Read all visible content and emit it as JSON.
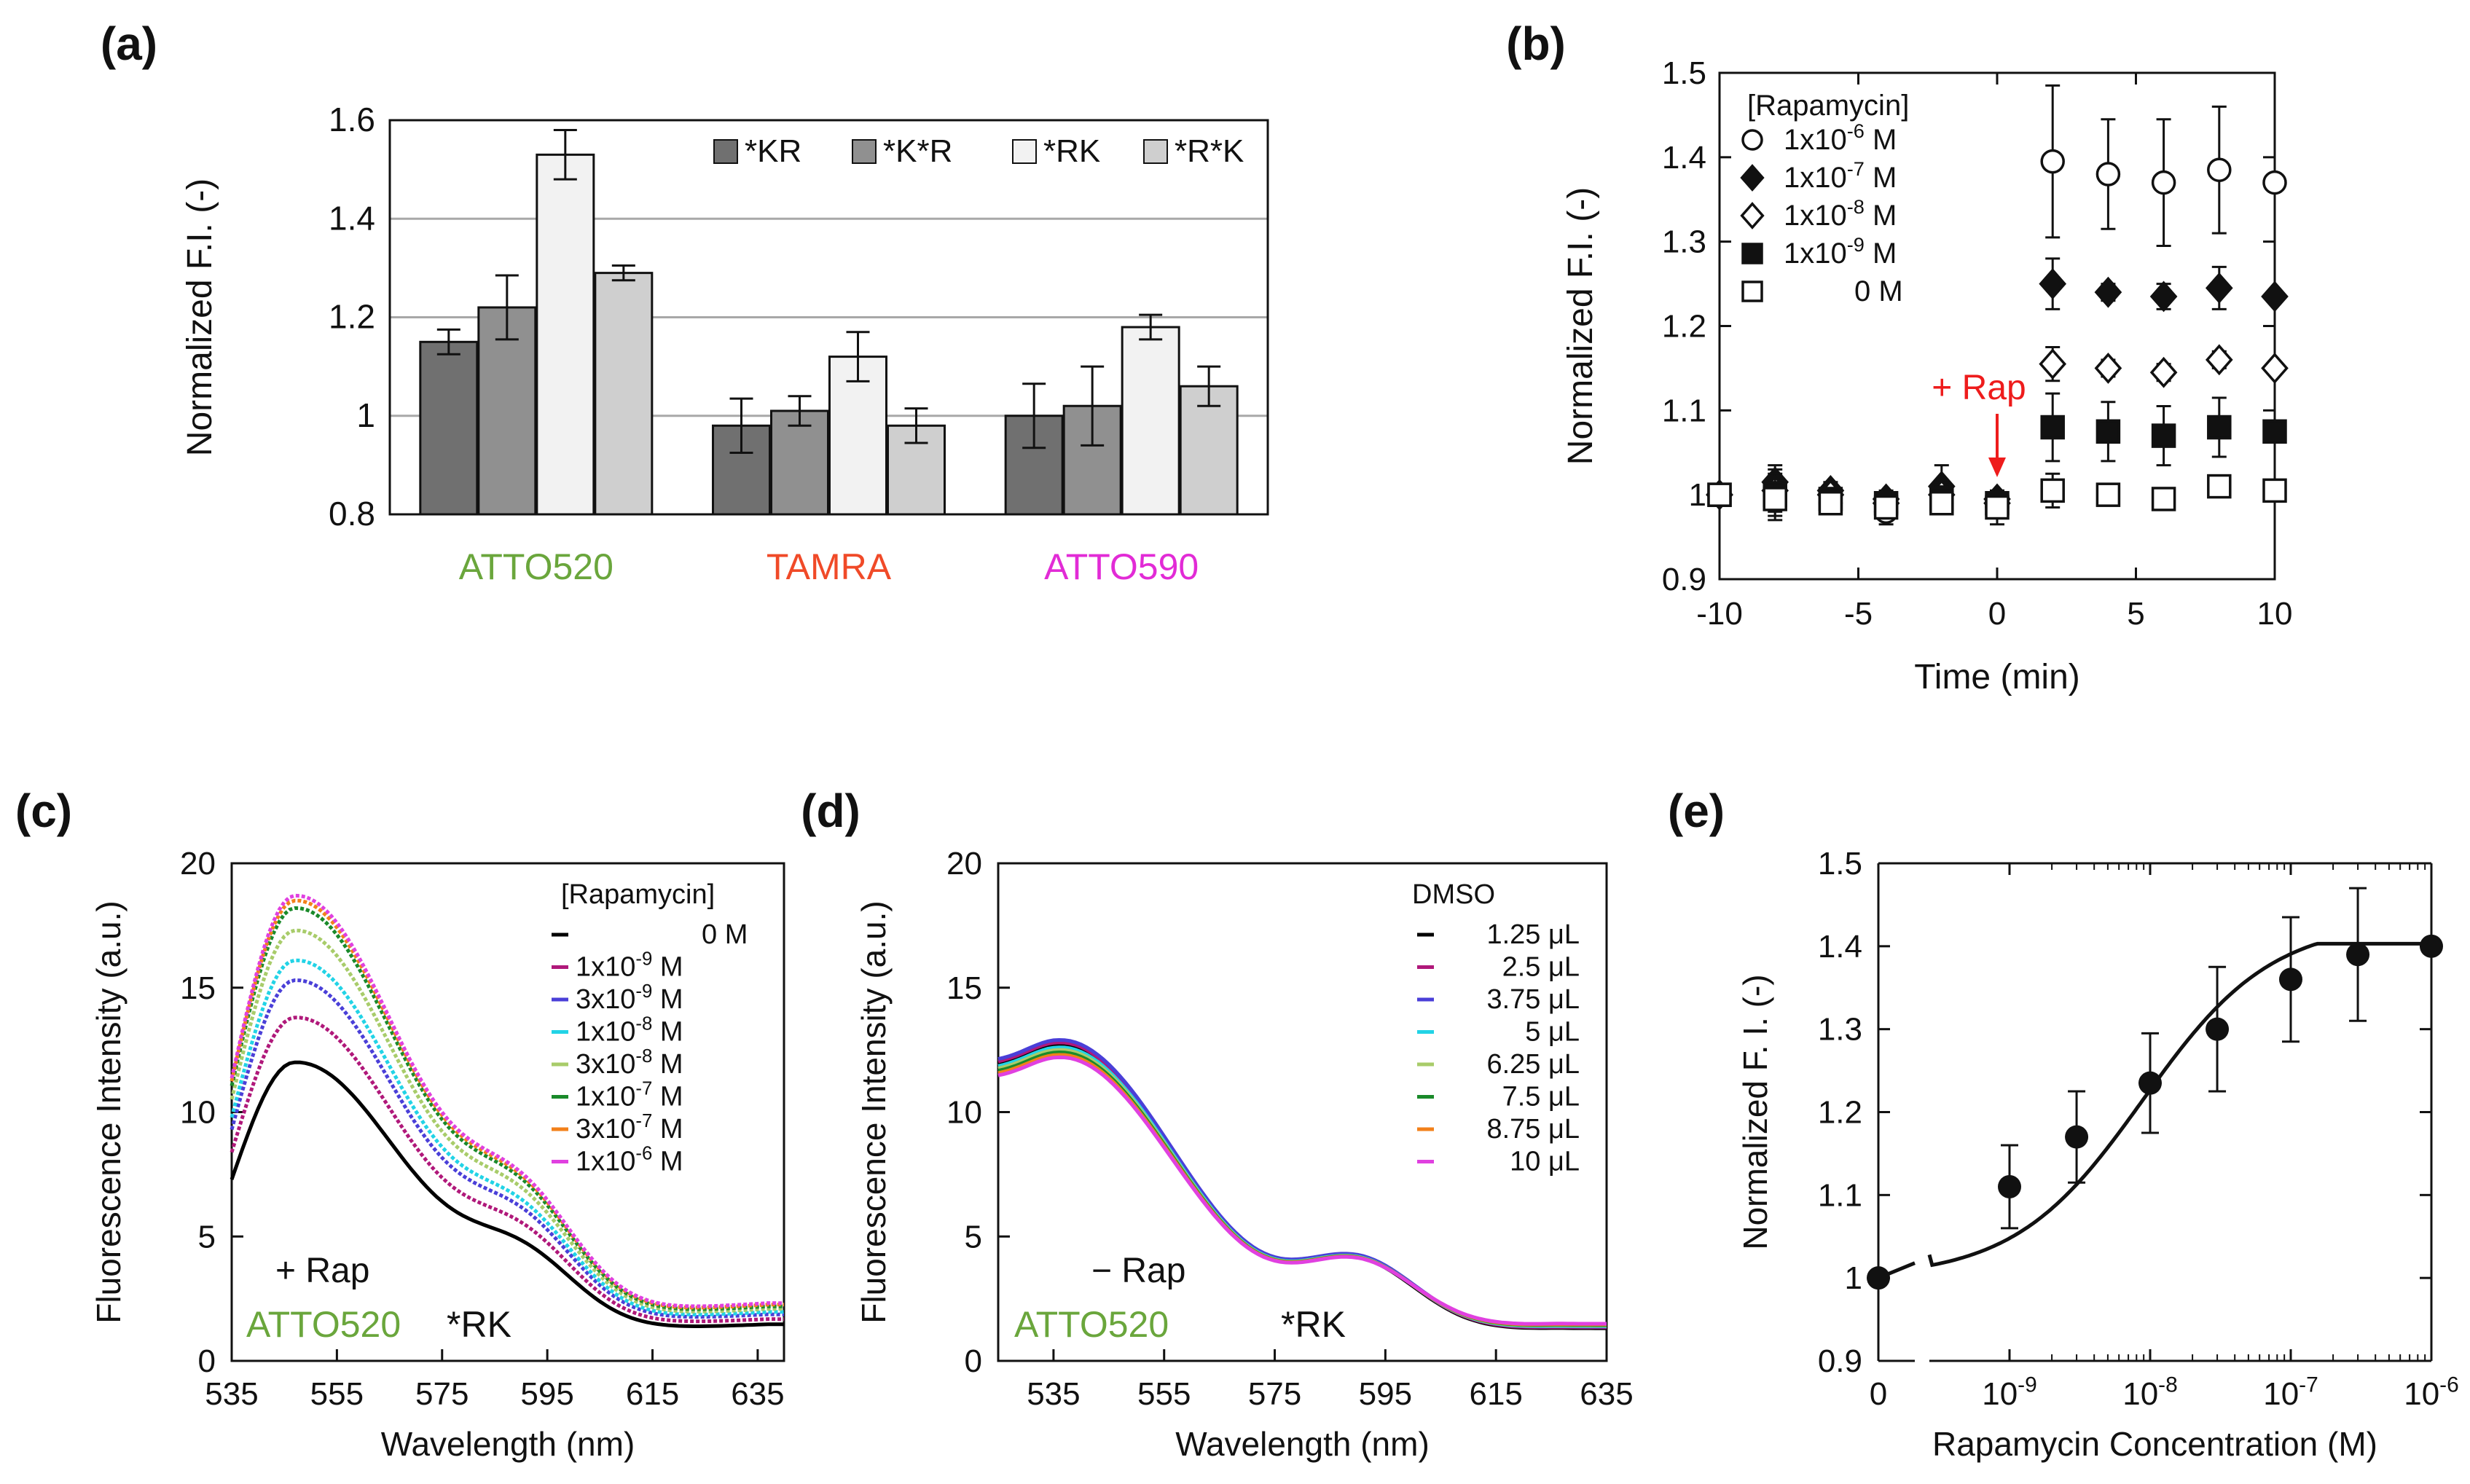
{
  "chart_data": [
    {
      "id": "a",
      "panel_label": "(a)",
      "type": "bar",
      "ylabel": "Normalized F.I. (-)",
      "ylim": [
        0.8,
        1.6
      ],
      "yticks": [
        "0.8",
        "1",
        "1.2",
        "1.4",
        "1.6"
      ],
      "ytick_values": [
        0.8,
        1.0,
        1.2,
        1.4,
        1.6
      ],
      "grid": "horizontal",
      "legend_position": "top-right",
      "categories": [
        {
          "label": "ATTO520",
          "color": "#6aa63c"
        },
        {
          "label": "TAMRA",
          "color": "#f04a28"
        },
        {
          "label": "ATTO590",
          "color": "#e22bd6"
        }
      ],
      "series": [
        {
          "name": "*KR",
          "color": "#707070",
          "values": [
            1.15,
            0.98,
            1.0
          ],
          "errors": [
            0.025,
            0.055,
            0.065
          ]
        },
        {
          "name": "*K*R",
          "color": "#909090",
          "values": [
            1.22,
            1.01,
            1.02
          ],
          "errors": [
            0.065,
            0.03,
            0.08
          ]
        },
        {
          "name": "*RK",
          "color": "#f2f2f2",
          "values": [
            1.53,
            1.12,
            1.18
          ],
          "errors": [
            0.05,
            0.05,
            0.025
          ]
        },
        {
          "name": "*R*K",
          "color": "#cfcfcf",
          "values": [
            1.29,
            0.98,
            1.06
          ],
          "errors": [
            0.015,
            0.035,
            0.04
          ]
        }
      ]
    },
    {
      "id": "b",
      "panel_label": "(b)",
      "type": "scatter",
      "xlabel": "Time (min)",
      "ylabel": "Normalized F.I. (-)",
      "xlim": [
        -10,
        10
      ],
      "ylim": [
        0.9,
        1.5
      ],
      "xticks": [
        "-10",
        "-5",
        "0",
        "5",
        "10"
      ],
      "xtick_values": [
        -10,
        -5,
        0,
        5,
        10
      ],
      "yticks": [
        "0.9",
        "1",
        "1.1",
        "1.2",
        "1.3",
        "1.4",
        "1.5"
      ],
      "ytick_values": [
        0.9,
        1.0,
        1.1,
        1.2,
        1.3,
        1.4,
        1.5
      ],
      "legend_title": "[Rapamycin]",
      "annotation": "+ Rap",
      "annotation_color": "#ee1c1c",
      "annotation_x": 0,
      "x": [
        -10,
        -8,
        -6,
        -4,
        -2,
        0,
        2,
        4,
        6,
        8,
        10
      ],
      "series": [
        {
          "name": "1x10",
          "exp": "-6",
          "unit": " M",
          "marker": "open-circle",
          "values": [
            1.0,
            1.0,
            0.99,
            0.98,
            0.99,
            0.985,
            1.395,
            1.38,
            1.37,
            1.385,
            1.37
          ],
          "errors": [
            0,
            0.03,
            0.01,
            0.015,
            0.01,
            0.02,
            0.09,
            0.065,
            0.075,
            0.075,
            0
          ]
        },
        {
          "name": "1x10",
          "exp": "-7",
          "unit": " M",
          "marker": "filled-diamond",
          "values": [
            1.0,
            1.015,
            1.005,
            0.995,
            1.01,
            0.995,
            1.25,
            1.24,
            1.235,
            1.245,
            1.235
          ],
          "errors": [
            0,
            0.02,
            0.01,
            0.01,
            0.025,
            0.01,
            0.03,
            0.01,
            0.015,
            0.025,
            0
          ]
        },
        {
          "name": "1x10",
          "exp": "-8",
          "unit": " M",
          "marker": "open-diamond",
          "values": [
            1.0,
            1.005,
            1.0,
            0.99,
            1.0,
            0.99,
            1.155,
            1.15,
            1.145,
            1.16,
            1.15
          ],
          "errors": [
            0,
            0.02,
            0.01,
            0.01,
            0.015,
            0.01,
            0.02,
            0.01,
            0.01,
            0.01,
            0
          ]
        },
        {
          "name": "1x10",
          "exp": "-9",
          "unit": " M",
          "marker": "filled-square",
          "values": [
            1.0,
            1.0,
            0.995,
            0.99,
            0.995,
            0.99,
            1.08,
            1.075,
            1.07,
            1.08,
            1.075
          ],
          "errors": [
            0,
            0.02,
            0.01,
            0.01,
            0.015,
            0.01,
            0.04,
            0.035,
            0.035,
            0.035,
            0
          ]
        },
        {
          "name": "0",
          "exp": "",
          "unit": " M",
          "marker": "open-square",
          "values": [
            1.0,
            0.995,
            0.99,
            0.985,
            0.99,
            0.985,
            1.005,
            1.0,
            0.995,
            1.01,
            1.005
          ],
          "errors": [
            0,
            0.02,
            0.01,
            0.01,
            0.01,
            0.01,
            0.02,
            0.005,
            0.005,
            0.01,
            0
          ]
        }
      ]
    },
    {
      "id": "c",
      "panel_label": "(c)",
      "type": "line",
      "xlabel": "Wavelength (nm)",
      "ylabel": "Fluorescence Intensity (a.u.)",
      "xlim": [
        535,
        640
      ],
      "ylim": [
        0,
        20
      ],
      "xticks": [
        "535",
        "555",
        "575",
        "595",
        "615",
        "635"
      ],
      "xtick_values": [
        535,
        555,
        575,
        595,
        615,
        635
      ],
      "yticks": [
        "0",
        "5",
        "10",
        "15",
        "20"
      ],
      "ytick_values": [
        0,
        5,
        10,
        15,
        20
      ],
      "legend_title": "[Rapamycin]",
      "note_line1": "+ Rap",
      "note_dye": "ATTO520",
      "note_dye_color": "#6aa63c",
      "note_construct": "*RK",
      "series": [
        {
          "name": "0",
          "exp": "",
          "unit": " M",
          "color": "#000000",
          "peak": 12.0,
          "tail": 0.75
        },
        {
          "name": "1x10",
          "exp": "-9",
          "unit": " M",
          "color": "#b0187a",
          "peak": 13.8,
          "tail": 0.85
        },
        {
          "name": "3x10",
          "exp": "-9",
          "unit": " M",
          "color": "#4a3fd8",
          "peak": 15.3,
          "tail": 0.95
        },
        {
          "name": "1x10",
          "exp": "-8",
          "unit": " M",
          "color": "#22d3e6",
          "peak": 16.1,
          "tail": 1.0
        },
        {
          "name": "3x10",
          "exp": "-8",
          "unit": " M",
          "color": "#a8cc6a",
          "peak": 17.3,
          "tail": 1.05
        },
        {
          "name": "1x10",
          "exp": "-7",
          "unit": " M",
          "color": "#1a8a2a",
          "peak": 18.2,
          "tail": 1.1
        },
        {
          "name": "3x10",
          "exp": "-7",
          "unit": " M",
          "color": "#f2801a",
          "peak": 18.5,
          "tail": 1.15
        },
        {
          "name": "1x10",
          "exp": "-6",
          "unit": " M",
          "color": "#e040e0",
          "peak": 18.7,
          "tail": 1.2
        }
      ]
    },
    {
      "id": "d",
      "panel_label": "(d)",
      "type": "line",
      "xlabel": "Wavelength (nm)",
      "ylabel": "Fluorescence Intensity (a.u.)",
      "xlim": [
        525,
        635
      ],
      "ylim": [
        0,
        20
      ],
      "xticks": [
        "535",
        "555",
        "575",
        "595",
        "615",
        "635"
      ],
      "xtick_values": [
        535,
        555,
        575,
        595,
        615,
        635
      ],
      "yticks": [
        "0",
        "5",
        "10",
        "15",
        "20"
      ],
      "ytick_values": [
        0,
        5,
        10,
        15,
        20
      ],
      "legend_title": "DMSO",
      "note_line1": "− Rap",
      "note_dye": "ATTO520",
      "note_dye_color": "#6aa63c",
      "note_construct": "*RK",
      "series": [
        {
          "name": "1.25 μL",
          "color": "#000000",
          "peak": 12.7
        },
        {
          "name": "2.5 μL",
          "color": "#b0187a",
          "peak": 12.8
        },
        {
          "name": "3.75 μL",
          "color": "#4a3fd8",
          "peak": 12.9
        },
        {
          "name": "5 μL",
          "color": "#22d3e6",
          "peak": 12.6
        },
        {
          "name": "6.25 μL",
          "color": "#a8cc6a",
          "peak": 12.5
        },
        {
          "name": "7.5 μL",
          "color": "#1a8a2a",
          "peak": 12.4
        },
        {
          "name": "8.75 μL",
          "color": "#f2801a",
          "peak": 12.3
        },
        {
          "name": "10 μL",
          "color": "#e040e0",
          "peak": 12.2
        }
      ]
    },
    {
      "id": "e",
      "panel_label": "(e)",
      "type": "scatter",
      "xlabel": "Rapamycin Concentration (M)",
      "ylabel": "Normalized F. I. (-)",
      "xscale": "log-with-zero",
      "ylim": [
        0.9,
        1.5
      ],
      "yticks": [
        "0.9",
        "1",
        "1.1",
        "1.2",
        "1.3",
        "1.4",
        "1.5"
      ],
      "ytick_values": [
        0.9,
        1.0,
        1.1,
        1.2,
        1.3,
        1.4,
        1.5
      ],
      "xticks": [
        {
          "base": "0",
          "exp": ""
        },
        {
          "base": "10",
          "exp": "-9"
        },
        {
          "base": "10",
          "exp": "-8"
        },
        {
          "base": "10",
          "exp": "-7"
        },
        {
          "base": "10",
          "exp": "-6"
        }
      ],
      "x": [
        "0",
        "1e-9",
        "3e-9",
        "1e-8",
        "3e-8",
        "1e-7",
        "3e-7",
        "1e-6"
      ],
      "x_log": [
        null,
        -9,
        -8.523,
        -8,
        -7.523,
        -7,
        -6.523,
        -6
      ],
      "values": [
        1.0,
        1.11,
        1.17,
        1.235,
        1.3,
        1.36,
        1.39,
        1.4
      ],
      "errors": [
        0,
        0.05,
        0.055,
        0.06,
        0.075,
        0.075,
        0.08,
        0
      ],
      "fit": "sigmoid"
    }
  ]
}
